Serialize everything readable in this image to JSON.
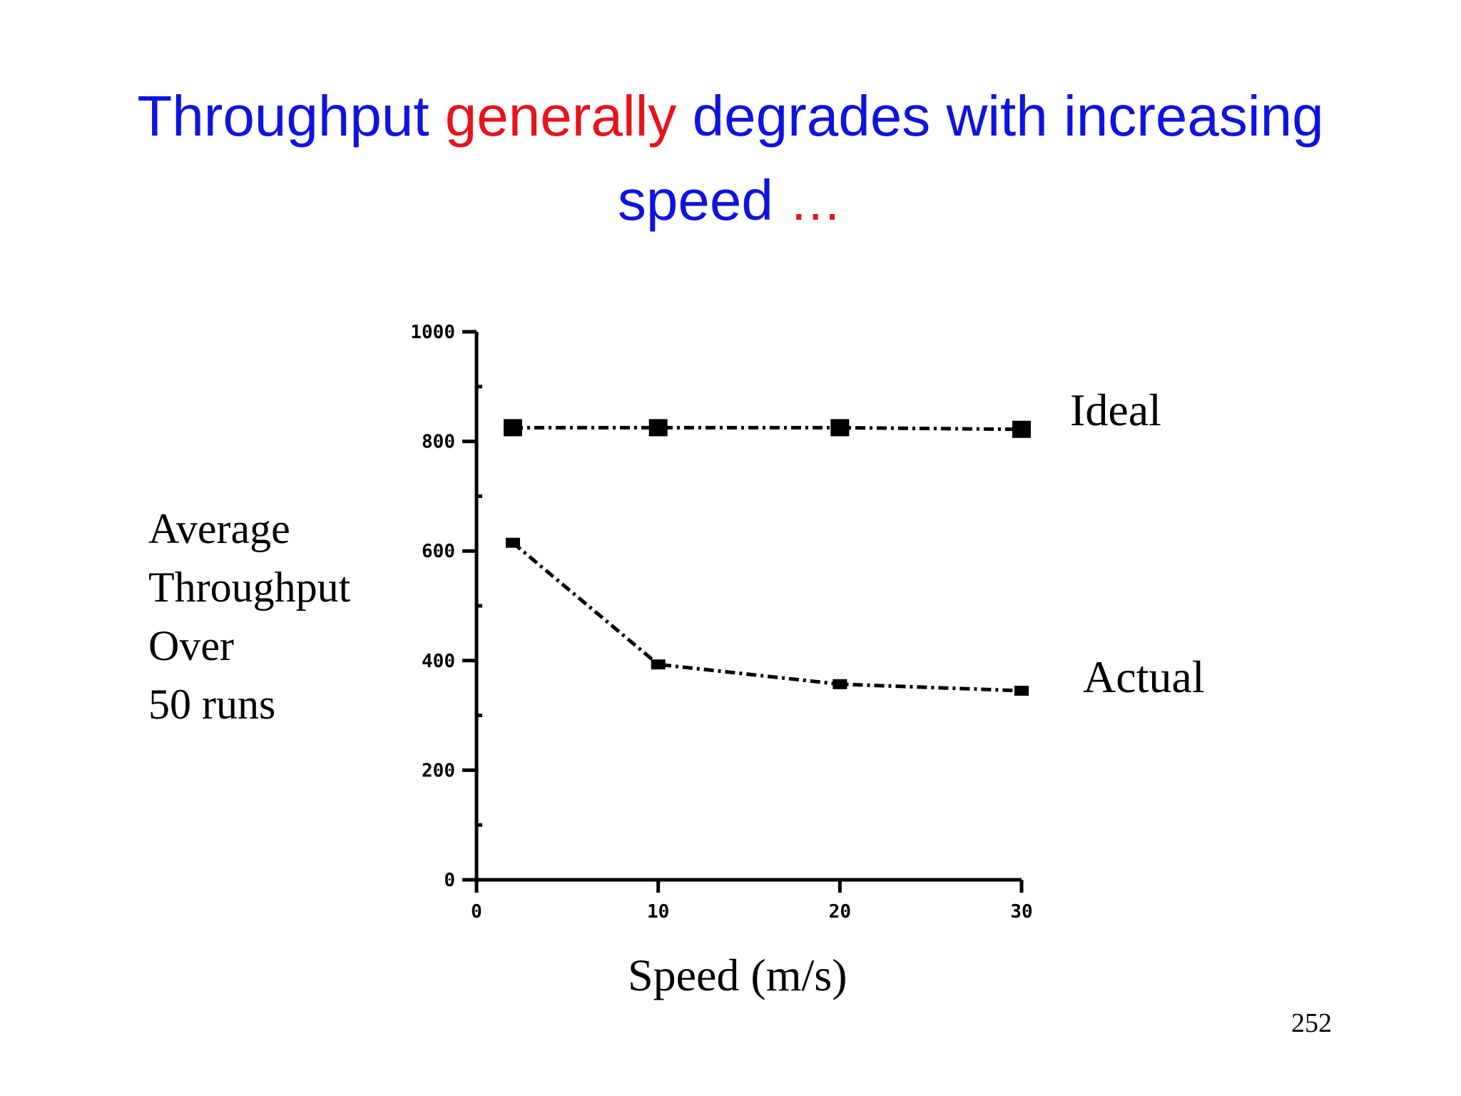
{
  "slide": {
    "title_part1": "Throughput",
    "title_part2": "generally",
    "title_part3": "degrades with increasing",
    "title_part4": "speed",
    "title_ellipsis": "…",
    "page_number": "252",
    "colors": {
      "blue": "#0f12e0",
      "red": "#e8121b"
    }
  },
  "chart_data": {
    "type": "line",
    "title": "",
    "xlabel": "Speed (m/s)",
    "ylabel_lines": [
      "Average",
      "Throughput",
      "Over",
      "50 runs"
    ],
    "xlim": [
      0,
      30
    ],
    "ylim": [
      0,
      1000
    ],
    "x_ticks": [
      0,
      10,
      20,
      30
    ],
    "x_tick_labels": [
      "0",
      "10",
      "20",
      "30"
    ],
    "y_ticks": [
      0,
      200,
      400,
      600,
      800,
      1000
    ],
    "y_tick_labels": [
      "0",
      "200",
      "400",
      "600",
      "800",
      "1000"
    ],
    "grid": false,
    "series": [
      {
        "name": "Ideal",
        "marker": "square",
        "line": "dash-dot",
        "x": [
          2,
          10,
          20,
          30
        ],
        "y": [
          825,
          825,
          825,
          822
        ]
      },
      {
        "name": "Actual",
        "marker": "triangle",
        "line": "dash-dot",
        "x": [
          2,
          10,
          20,
          30
        ],
        "y": [
          615,
          393,
          357,
          345
        ]
      }
    ]
  }
}
